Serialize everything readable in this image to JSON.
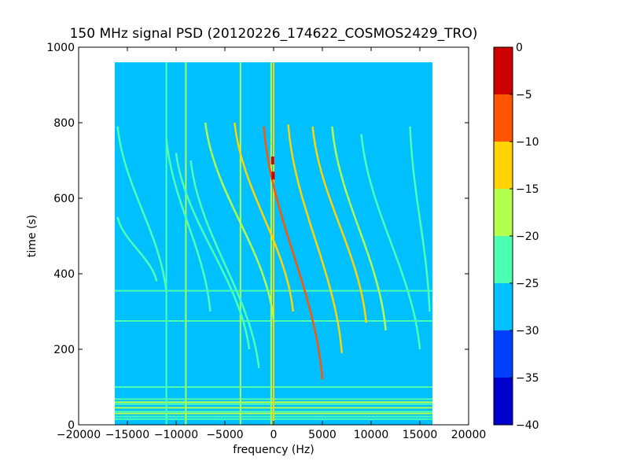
{
  "chart_data": {
    "type": "heatmap",
    "title": "150 MHz signal PSD (20120226_174622_COSMOS2429_TRO)",
    "xlabel": "frequency (Hz)",
    "ylabel": "time (s)",
    "xlim": [
      -20000,
      20000
    ],
    "ylim": [
      0,
      1000
    ],
    "xticks": [
      -20000,
      -15000,
      -10000,
      -5000,
      0,
      5000,
      10000,
      15000,
      20000
    ],
    "yticks": [
      0,
      200,
      400,
      600,
      800,
      1000
    ],
    "data_extent": {
      "x": [
        -16300,
        16300
      ],
      "y": [
        0,
        960
      ]
    },
    "background_level_db": -27.5,
    "colorbar": {
      "range": [
        -40,
        0
      ],
      "ticks": [
        0,
        -5,
        -10,
        -15,
        -20,
        -25,
        -30,
        -35,
        -40
      ],
      "levels": [
        {
          "from": -40,
          "to": -35,
          "color": "#0000cd"
        },
        {
          "from": -35,
          "to": -30,
          "color": "#0040ff"
        },
        {
          "from": -30,
          "to": -25,
          "color": "#00c0ff"
        },
        {
          "from": -25,
          "to": -20,
          "color": "#4dffb2"
        },
        {
          "from": -20,
          "to": -15,
          "color": "#b2ff4d"
        },
        {
          "from": -15,
          "to": -10,
          "color": "#ffd400"
        },
        {
          "from": -10,
          "to": -5,
          "color": "#ff5500"
        },
        {
          "from": -5,
          "to": 0,
          "color": "#cd0000"
        }
      ]
    },
    "horizontal_bands": [
      {
        "time": 15,
        "level_db": -22
      },
      {
        "time": 22,
        "level_db": -22
      },
      {
        "time": 30,
        "level_db": -18
      },
      {
        "time": 35,
        "level_db": -22
      },
      {
        "time": 45,
        "level_db": -18
      },
      {
        "time": 55,
        "level_db": -22
      },
      {
        "time": 60,
        "level_db": -18
      },
      {
        "time": 68,
        "level_db": -22
      },
      {
        "time": 100,
        "level_db": -22
      },
      {
        "time": 275,
        "level_db": -22
      },
      {
        "time": 355,
        "level_db": -22
      }
    ],
    "vertical_lines": [
      {
        "freq": -11000,
        "t0": 0,
        "t1": 960,
        "level_db": -22
      },
      {
        "freq": -9000,
        "t0": 0,
        "t1": 960,
        "level_db": -18
      },
      {
        "freq": -3400,
        "t0": 0,
        "t1": 960,
        "level_db": -18
      },
      {
        "freq": -250,
        "t0": 0,
        "t1": 960,
        "level_db": -18
      },
      {
        "freq": 0,
        "t0": 0,
        "t1": 960,
        "level_db": -12
      }
    ],
    "doppler_traces": [
      {
        "freq_top": -16000,
        "freq_bottom": -11000,
        "t_top": 790,
        "t_bottom": 350,
        "level_db": -22
      },
      {
        "freq_top": -16000,
        "freq_bottom": -12000,
        "t_top": 550,
        "t_bottom": 380,
        "level_db": -22
      },
      {
        "freq_top": -11000,
        "freq_bottom": -6500,
        "t_top": 760,
        "t_bottom": 300,
        "level_db": -22
      },
      {
        "freq_top": -10000,
        "freq_bottom": -2500,
        "t_top": 720,
        "t_bottom": 200,
        "level_db": -22
      },
      {
        "freq_top": -8500,
        "freq_bottom": -1500,
        "t_top": 700,
        "t_bottom": 150,
        "level_db": -22
      },
      {
        "freq_top": -7000,
        "freq_bottom": 0,
        "t_top": 800,
        "t_bottom": 280,
        "level_db": -18
      },
      {
        "freq_top": -4000,
        "freq_bottom": 2000,
        "t_top": 800,
        "t_bottom": 300,
        "level_db": -12
      },
      {
        "freq_top": -1000,
        "freq_bottom": 5000,
        "t_top": 790,
        "t_bottom": 120,
        "level_db": -8
      },
      {
        "freq_top": 1500,
        "freq_bottom": 7000,
        "t_top": 795,
        "t_bottom": 190,
        "level_db": -12
      },
      {
        "freq_top": 4000,
        "freq_bottom": 9500,
        "t_top": 790,
        "t_bottom": 270,
        "level_db": -12
      },
      {
        "freq_top": 6000,
        "freq_bottom": 11500,
        "t_top": 790,
        "t_bottom": 250,
        "level_db": -18
      },
      {
        "freq_top": 9000,
        "freq_bottom": 15000,
        "t_top": 770,
        "t_bottom": 200,
        "level_db": -22
      },
      {
        "freq_top": 14000,
        "freq_bottom": 16000,
        "t_top": 790,
        "t_bottom": 300,
        "level_db": -22
      }
    ],
    "hotspots": [
      {
        "freq": -100,
        "time": 700,
        "level_db": -2
      },
      {
        "freq": -50,
        "time": 660,
        "level_db": -2
      }
    ],
    "grid": false
  }
}
